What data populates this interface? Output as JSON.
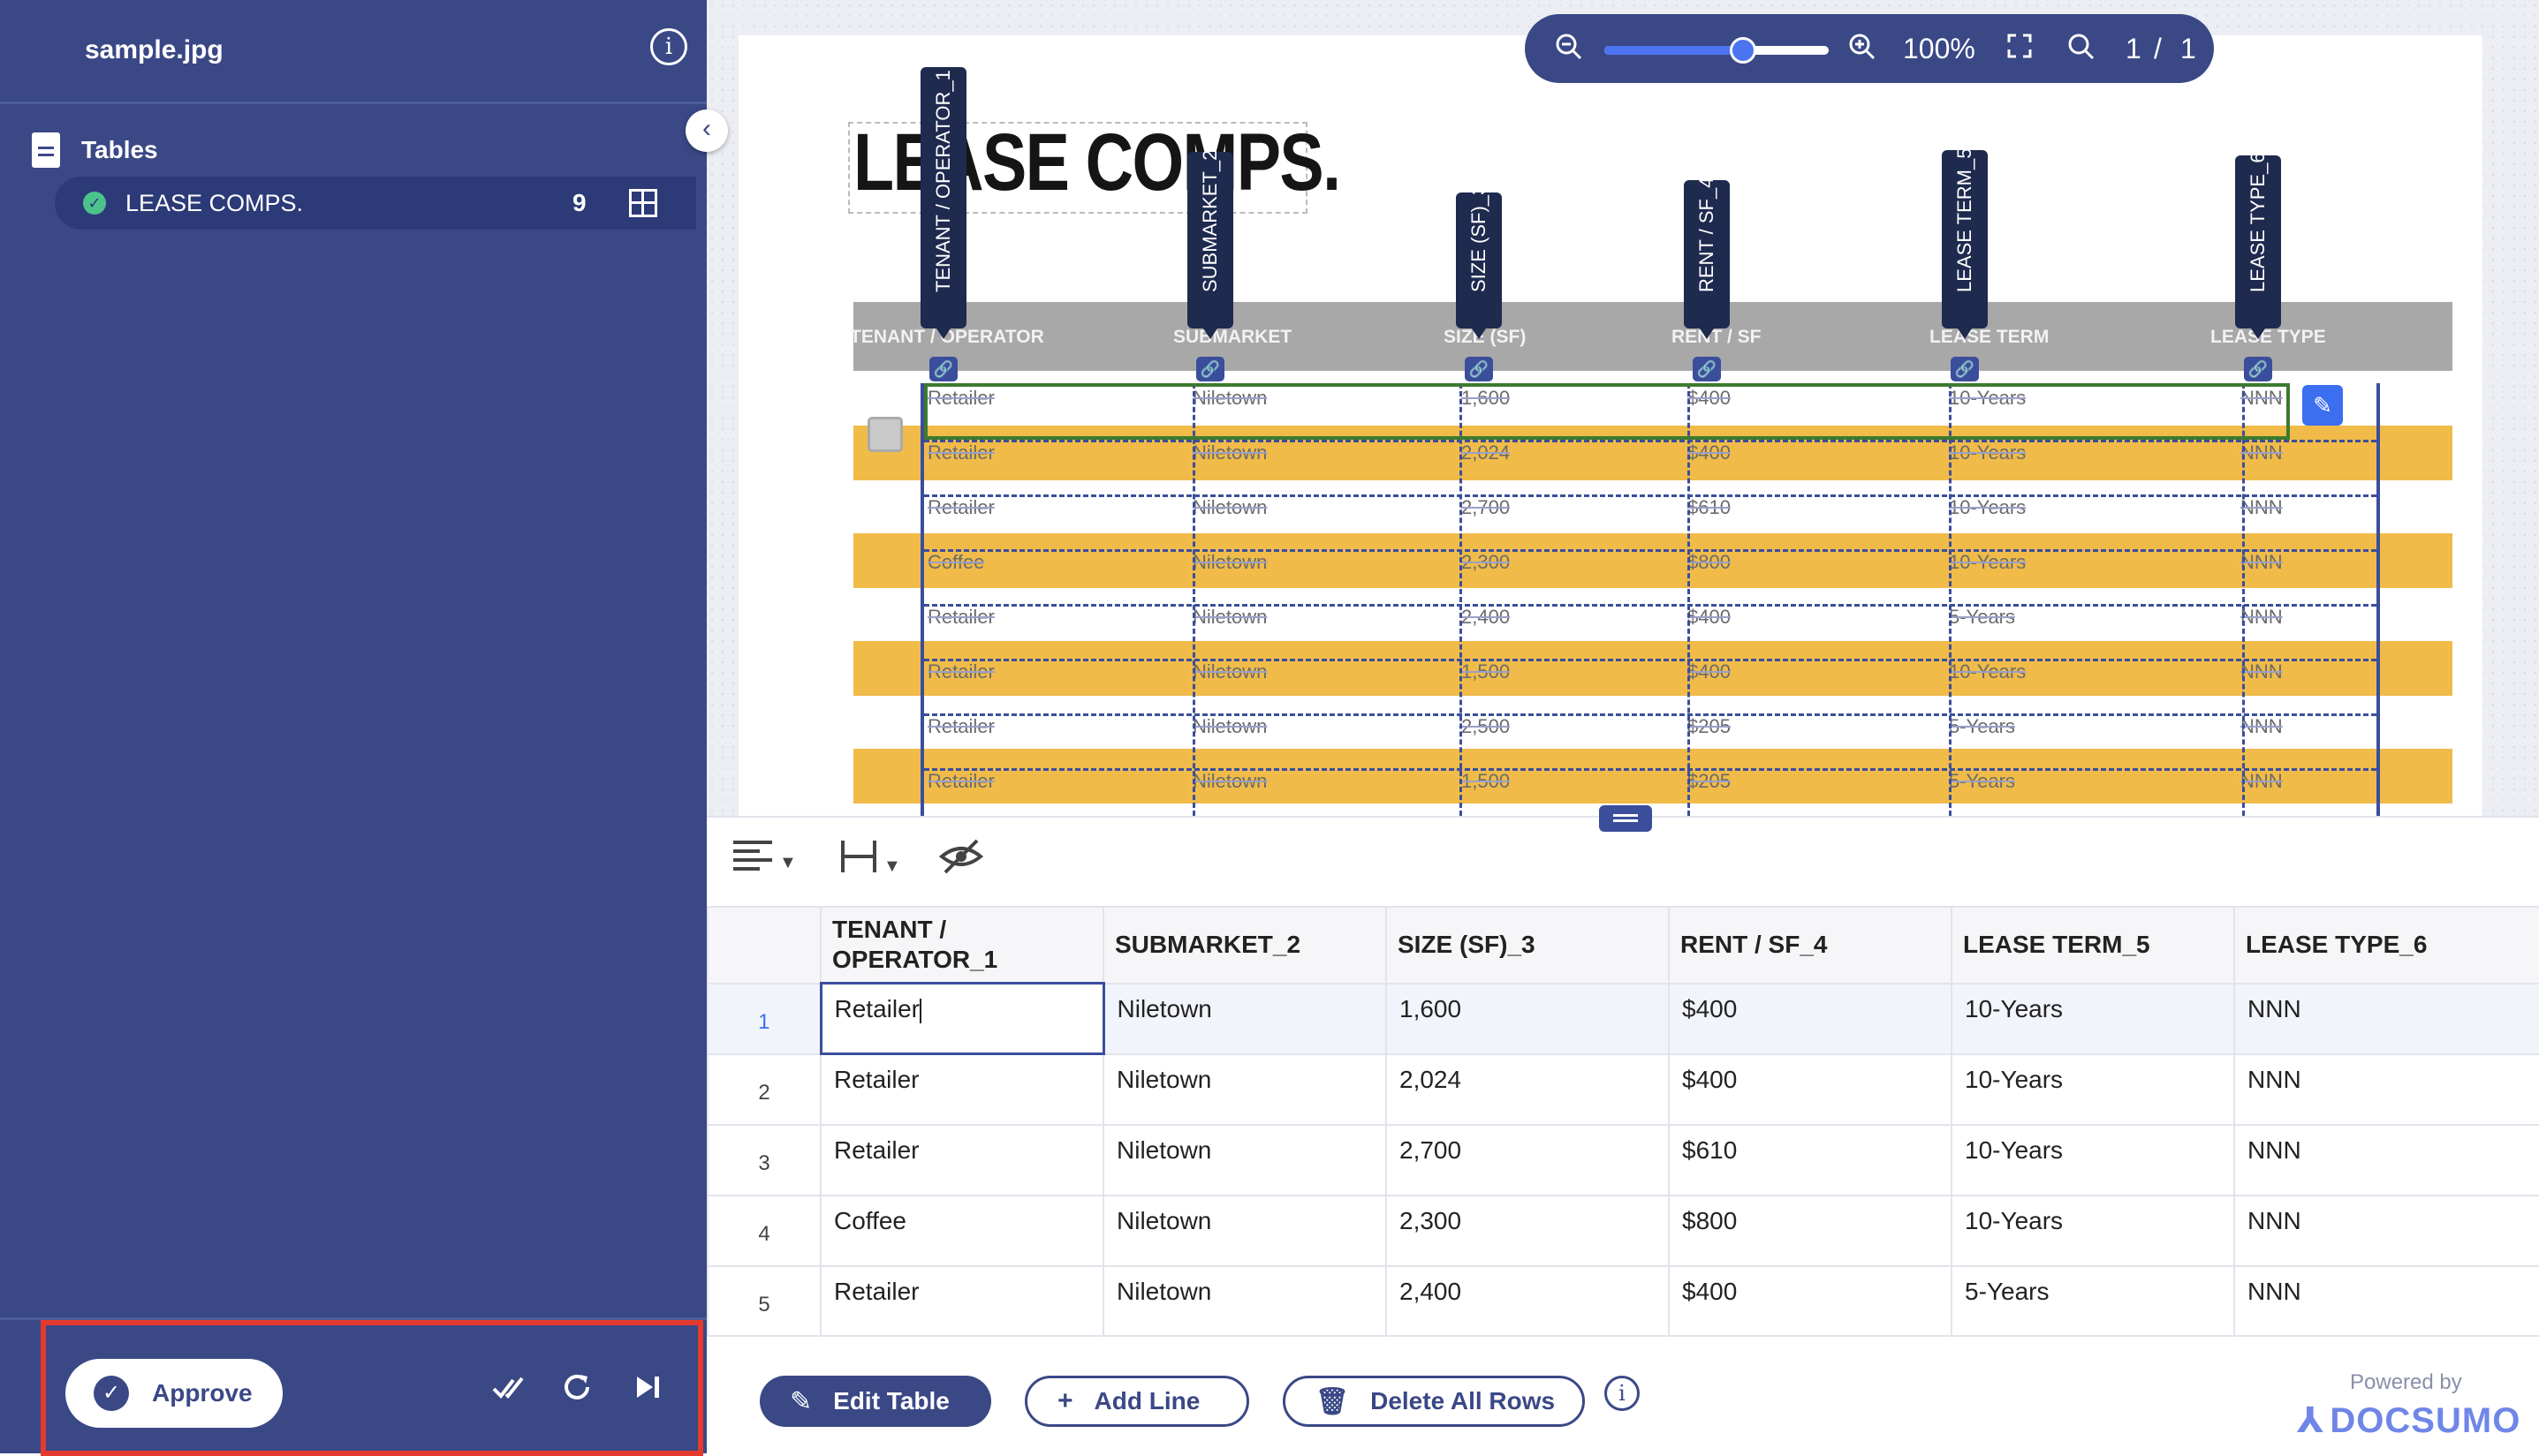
{
  "sidebar": {
    "filename": "sample.jpg",
    "section_label": "Tables",
    "table_item": {
      "label": "LEASE COMPS.",
      "count": "9"
    },
    "approve_label": "Approve"
  },
  "viewer": {
    "zoom_text": "100%",
    "page_current": "1",
    "page_sep": "/",
    "page_total": "1",
    "zoom_level": 0.62,
    "doc_title": "LEASE COMPS.",
    "doc_headers": [
      "TENANT / OPERATOR",
      "SUBMARKET",
      "SIZE (SF)",
      "RENT / SF",
      "LEASE TERM",
      "LEASE TYPE"
    ],
    "column_tags": [
      "TENANT / OPERATOR_1",
      "SUBMARKET_2",
      "SIZE (SF)_3",
      "RENT / SF_4",
      "LEASE TERM_5",
      "LEASE TYPE_6"
    ],
    "doc_rows": [
      [
        "Retailer",
        "Niletown",
        "1,600",
        "$400",
        "10-Years",
        "NNN"
      ],
      [
        "Retailer",
        "Niletown",
        "2,024",
        "$400",
        "10-Years",
        "NNN"
      ],
      [
        "Retailer",
        "Niletown",
        "2,700",
        "$610",
        "10-Years",
        "NNN"
      ],
      [
        "Coffee",
        "Niletown",
        "2,300",
        "$800",
        "10-Years",
        "NNN"
      ],
      [
        "Retailer",
        "Niletown",
        "2,400",
        "$400",
        "5-Years",
        "NNN"
      ],
      [
        "Retailer",
        "Niletown",
        "1,500",
        "$400",
        "10-Years",
        "NNN"
      ],
      [
        "Retailer",
        "Niletown",
        "2,500",
        "$205",
        "5-Years",
        "NNN"
      ],
      [
        "Retailer",
        "Niletown",
        "1,500",
        "$205",
        "5-Years",
        "NNN"
      ]
    ]
  },
  "editor": {
    "columns": [
      "TENANT / OPERATOR_1",
      "SUBMARKET_2",
      "SIZE (SF)_3",
      "RENT / SF_4",
      "LEASE TERM_5",
      "LEASE TYPE_6"
    ],
    "rows": [
      {
        "num": "1",
        "cells": [
          "Retailer",
          "Niletown",
          "1,600",
          "$400",
          "10-Years",
          "NNN"
        ]
      },
      {
        "num": "2",
        "cells": [
          "Retailer",
          "Niletown",
          "2,024",
          "$400",
          "10-Years",
          "NNN"
        ]
      },
      {
        "num": "3",
        "cells": [
          "Retailer",
          "Niletown",
          "2,700",
          "$610",
          "10-Years",
          "NNN"
        ]
      },
      {
        "num": "4",
        "cells": [
          "Coffee",
          "Niletown",
          "2,300",
          "$800",
          "10-Years",
          "NNN"
        ]
      },
      {
        "num": "5",
        "cells": [
          "Retailer",
          "Niletown",
          "2,400",
          "$400",
          "5-Years",
          "NNN"
        ]
      }
    ],
    "buttons": {
      "edit_table": "Edit Table",
      "add_line": "Add Line",
      "delete_all": "Delete All Rows"
    },
    "powered_by": "Powered by",
    "brand": "DOCSUMO"
  },
  "icons": {
    "info": "info-icon",
    "collapse": "chevron-left-icon",
    "zoom_out": "zoom-out-icon",
    "zoom_in": "zoom-in-icon",
    "fullscreen": "fullscreen-icon",
    "search": "search-icon",
    "link": "link-icon",
    "edit": "pencil-icon",
    "align": "align-left-icon",
    "column_width": "column-width-icon",
    "hide": "eye-slash-icon",
    "approve_all": "double-check-icon",
    "refresh": "refresh-icon",
    "skip": "skip-next-icon"
  },
  "colors": {
    "sidebar": "#3a4886",
    "accent": "#3b6ff0",
    "approve_highlight": "#e53a2e",
    "selected_row": "#3d7a2e",
    "band": "#f0bb48"
  }
}
